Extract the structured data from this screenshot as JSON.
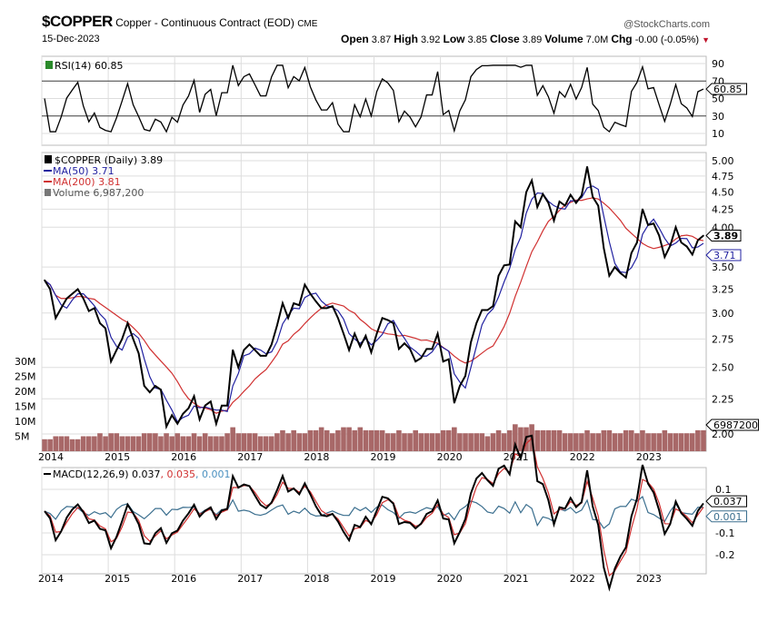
{
  "header": {
    "symbol": "$COPPER",
    "name": "Copper - Continuous Contract (EOD)",
    "exchange": "CME",
    "watermark": "@StockCharts.com",
    "date": "15-Dec-2023",
    "open_label": "Open",
    "open": "3.87",
    "high_label": "High",
    "high": "3.92",
    "low_label": "Low",
    "low": "3.85",
    "close_label": "Close",
    "close": "3.89",
    "volume_label": "Volume",
    "volume": "7.0M",
    "chg_label": "Chg",
    "chg": "-0.00 (-0.05%)",
    "chg_arrow": "▼"
  },
  "colors": {
    "price": "#000000",
    "ma50": "#2020a0",
    "ma200": "#d03030",
    "volume": "#a86868",
    "macd": "#000000",
    "macd_signal": "#d03030",
    "macd_hist": "#3a6e8e",
    "grid": "#dddddd"
  },
  "chart_data": [
    {
      "type": "line",
      "panel": "rsi",
      "legend": "RSI(14) 60.85",
      "last_value": "60.85",
      "yticks": [
        "90",
        "70",
        "50",
        "30",
        "10"
      ],
      "ylim": [
        0,
        100
      ],
      "reference_lines": [
        70,
        30
      ]
    },
    {
      "type": "line",
      "panel": "price",
      "scale": "log",
      "legend": {
        "price": "$COPPER (Daily) 3.89",
        "ma50": "MA(50) 3.71",
        "ma200": "MA(200) 3.81",
        "volume": "Volume 6,987,200"
      },
      "tags": {
        "price": "3.89",
        "ma50": "3.71",
        "volume": "6987200"
      },
      "yticks": [
        "5.00",
        "4.75",
        "4.50",
        "4.25",
        "4.00",
        "3.50",
        "3.25",
        "3.00",
        "2.75",
        "2.50",
        "2.25",
        "2.00"
      ],
      "volume_ticks": [
        "30M",
        "25M",
        "20M",
        "15M",
        "10M",
        "5M"
      ],
      "ylim": [
        2.0,
        5.0
      ],
      "x_start": "2014-01",
      "x_step": "month",
      "close": [
        3.35,
        3.25,
        2.95,
        3.05,
        3.15,
        3.2,
        3.25,
        3.15,
        3.02,
        3.05,
        2.9,
        2.85,
        2.55,
        2.65,
        2.75,
        2.9,
        2.75,
        2.62,
        2.35,
        2.3,
        2.35,
        2.32,
        2.05,
        2.13,
        2.07,
        2.14,
        2.18,
        2.27,
        2.1,
        2.2,
        2.23,
        2.07,
        2.2,
        2.2,
        2.65,
        2.5,
        2.65,
        2.7,
        2.65,
        2.6,
        2.6,
        2.7,
        2.88,
        3.1,
        2.95,
        3.1,
        3.08,
        3.3,
        3.2,
        3.12,
        3.05,
        3.05,
        3.07,
        2.95,
        2.8,
        2.65,
        2.8,
        2.68,
        2.78,
        2.63,
        2.8,
        2.95,
        2.93,
        2.9,
        2.66,
        2.71,
        2.66,
        2.55,
        2.58,
        2.66,
        2.66,
        2.8,
        2.55,
        2.57,
        2.22,
        2.35,
        2.43,
        2.72,
        2.9,
        3.03,
        3.03,
        3.07,
        3.4,
        3.52,
        3.53,
        4.08,
        4.0,
        4.5,
        4.68,
        4.28,
        4.47,
        4.34,
        4.09,
        4.36,
        4.3,
        4.46,
        4.34,
        4.45,
        4.9,
        4.43,
        4.3,
        3.73,
        3.4,
        3.5,
        3.43,
        3.38,
        3.67,
        3.8,
        4.25,
        4.03,
        4.05,
        3.89,
        3.62,
        3.76,
        4.0,
        3.8,
        3.75,
        3.65,
        3.83,
        3.89
      ],
      "volume_m": [
        4,
        4,
        5,
        5,
        5,
        4,
        4,
        5,
        5,
        5,
        6,
        5,
        6,
        6,
        5,
        5,
        5,
        5,
        6,
        6,
        6,
        5,
        6,
        5,
        6,
        5,
        5,
        6,
        5,
        6,
        5,
        5,
        5,
        6,
        8,
        6,
        6,
        6,
        6,
        5,
        5,
        5,
        6,
        7,
        6,
        7,
        6,
        6,
        7,
        7,
        8,
        7,
        6,
        7,
        8,
        8,
        7,
        8,
        7,
        7,
        7,
        7,
        6,
        6,
        7,
        6,
        6,
        7,
        6,
        6,
        6,
        6,
        7,
        7,
        8,
        6,
        6,
        6,
        6,
        6,
        5,
        6,
        7,
        6,
        7,
        9,
        8,
        8,
        9,
        7,
        7,
        7,
        7,
        7,
        6,
        6,
        6,
        6,
        7,
        6,
        6,
        7,
        7,
        6,
        6,
        7,
        7,
        6,
        7,
        6,
        6,
        6,
        7,
        6,
        6,
        6,
        6,
        6,
        7,
        7
      ]
    },
    {
      "type": "line",
      "panel": "macd",
      "legend": {
        "macd": "MACD(12,26,9) 0.037",
        "signal": ", 0.035",
        "hist": ", 0.001"
      },
      "tags": {
        "macd": "0.037",
        "hist": "0.001"
      },
      "yticks": [
        "0.1",
        "-0.1",
        "-0.2"
      ]
    }
  ],
  "x_axis": {
    "labels": [
      "2014",
      "2015",
      "2016",
      "2017",
      "2018",
      "2019",
      "2020",
      "2021",
      "2022",
      "2023"
    ]
  }
}
